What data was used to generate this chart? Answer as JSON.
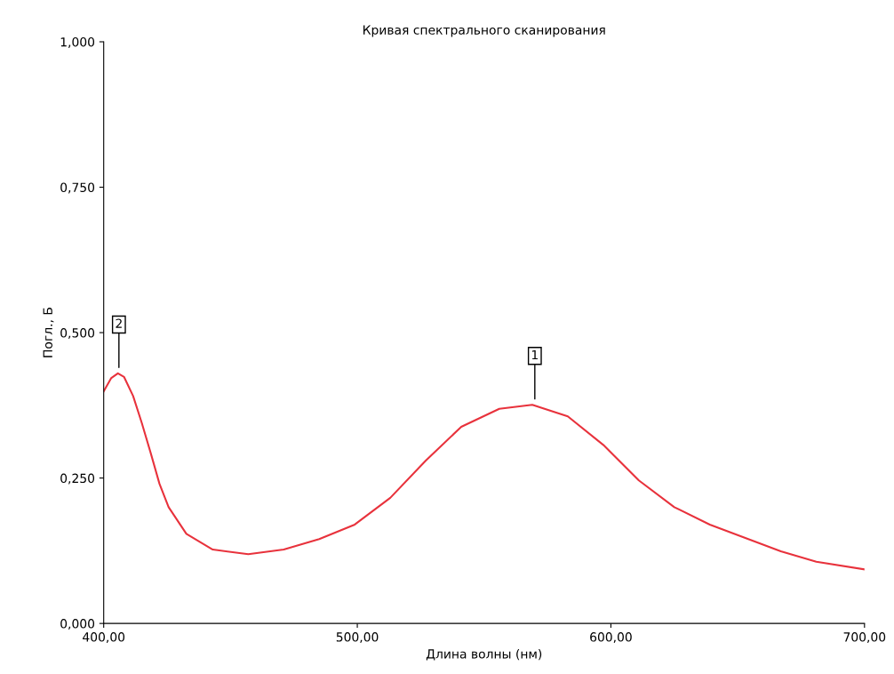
{
  "chart_data": {
    "type": "line",
    "title": "Кривая спектрального сканирования",
    "xlabel": "Длина волны (нм)",
    "ylabel": "Погл., Б",
    "xlim": [
      400,
      700
    ],
    "ylim": [
      0,
      1
    ],
    "xticks": [
      {
        "value": 400,
        "label": "400,00"
      },
      {
        "value": 500,
        "label": "500,00"
      },
      {
        "value": 600,
        "label": "600,00"
      },
      {
        "value": 700,
        "label": "700,00"
      }
    ],
    "yticks": [
      {
        "value": 0,
        "label": "0,000"
      },
      {
        "value": 0.25,
        "label": "0,250"
      },
      {
        "value": 0.5,
        "label": "0,500"
      },
      {
        "value": 0.75,
        "label": "0,750"
      },
      {
        "value": 1,
        "label": "1,000"
      }
    ],
    "grid": false,
    "legend": false,
    "series": [
      {
        "color": "#e8323c",
        "x": [
          400,
          403,
          405.6,
          408,
          411.6,
          415,
          418.6,
          422,
          425.6,
          432.6,
          443,
          457,
          471,
          485,
          499,
          513,
          527,
          541,
          556,
          569,
          583,
          597,
          611,
          625,
          639,
          653,
          667,
          681,
          700
        ],
        "values": [
          0.399,
          0.422,
          0.43,
          0.424,
          0.391,
          0.345,
          0.292,
          0.24,
          0.2,
          0.154,
          0.127,
          0.119,
          0.127,
          0.145,
          0.17,
          0.216,
          0.28,
          0.338,
          0.369,
          0.376,
          0.356,
          0.307,
          0.246,
          0.2,
          0.17,
          0.147,
          0.124,
          0.106,
          0.093
        ]
      }
    ],
    "annotations": [
      {
        "text": "2",
        "x": 406,
        "y": 0.43
      },
      {
        "text": "1",
        "x": 570,
        "y": 0.376
      }
    ]
  }
}
